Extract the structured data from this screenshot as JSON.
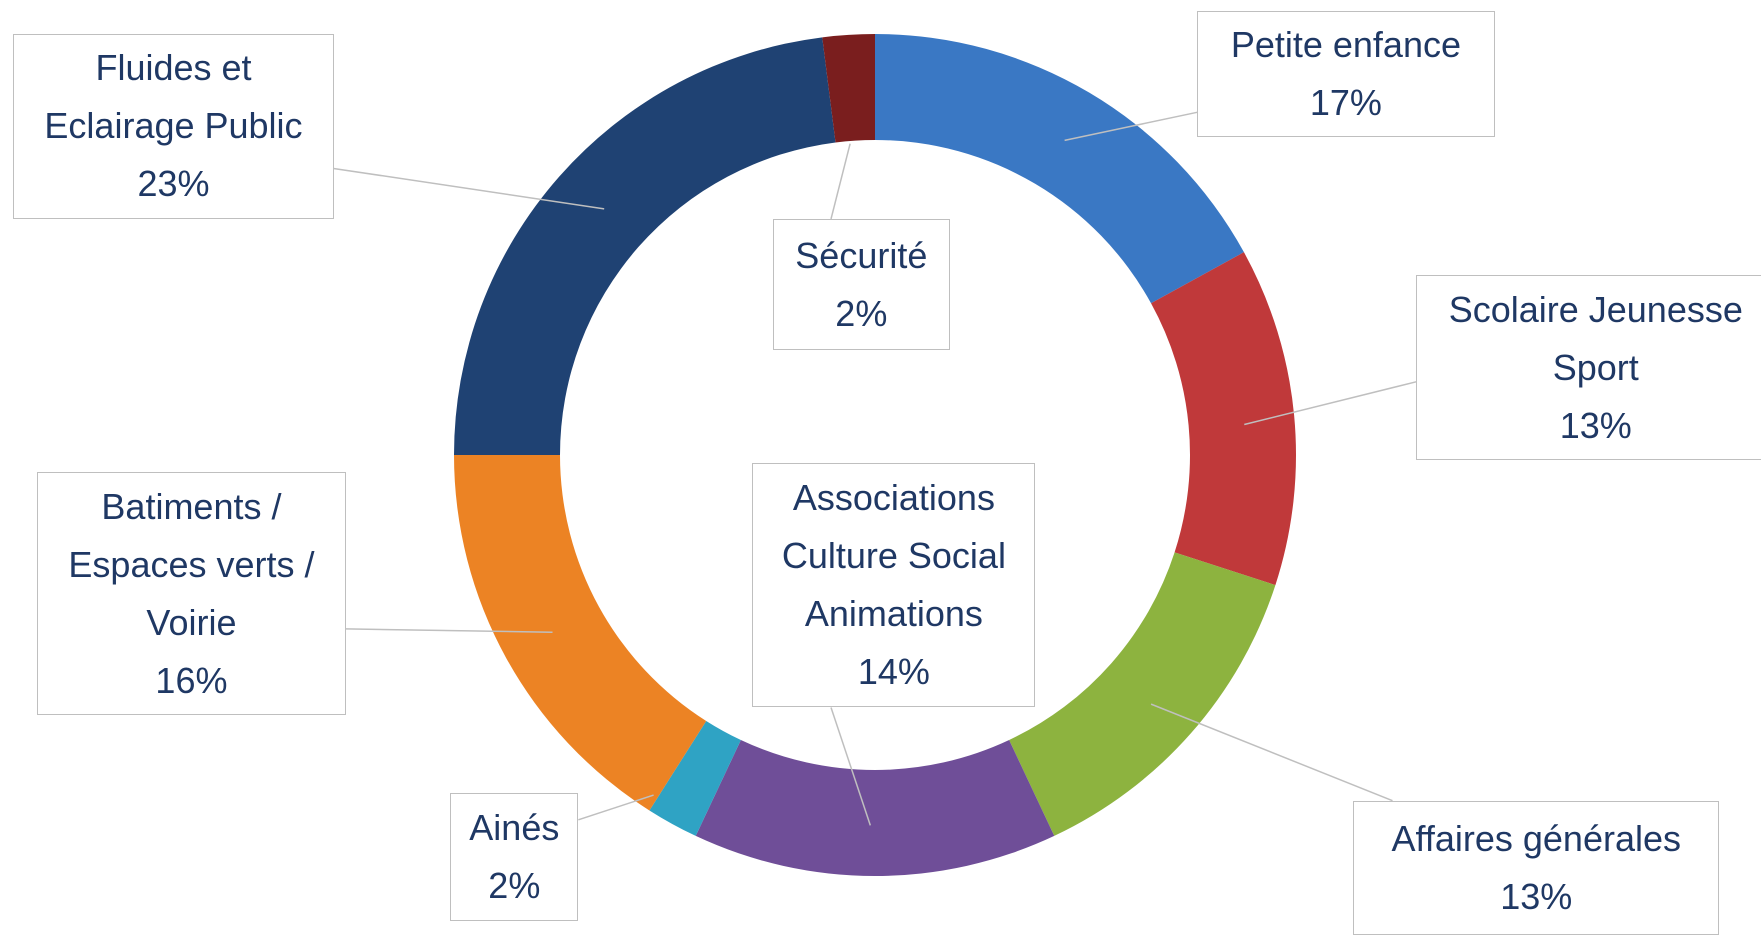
{
  "chart_data": {
    "type": "donut",
    "categories": [
      "Petite enfance",
      "Scolaire Jeunesse\nSport",
      "Affaires générales",
      "Associations\nCulture Social\nAnimations",
      "Ainés",
      "Batiments /\nEspaces verts /\nVoirie",
      "Fluides et\nEclairage Public",
      "Sécurité"
    ],
    "values": [
      17,
      13,
      13,
      14,
      2,
      16,
      23,
      2
    ],
    "value_labels": [
      "17%",
      "13%",
      "13%",
      "14%",
      "2%",
      "16%",
      "23%",
      "2%"
    ],
    "colors": [
      "#3a78c4",
      "#c0393a",
      "#8db33f",
      "#6f4e98",
      "#2fa3c4",
      "#ec8324",
      "#1f4273",
      "#7a1e1e"
    ]
  }
}
